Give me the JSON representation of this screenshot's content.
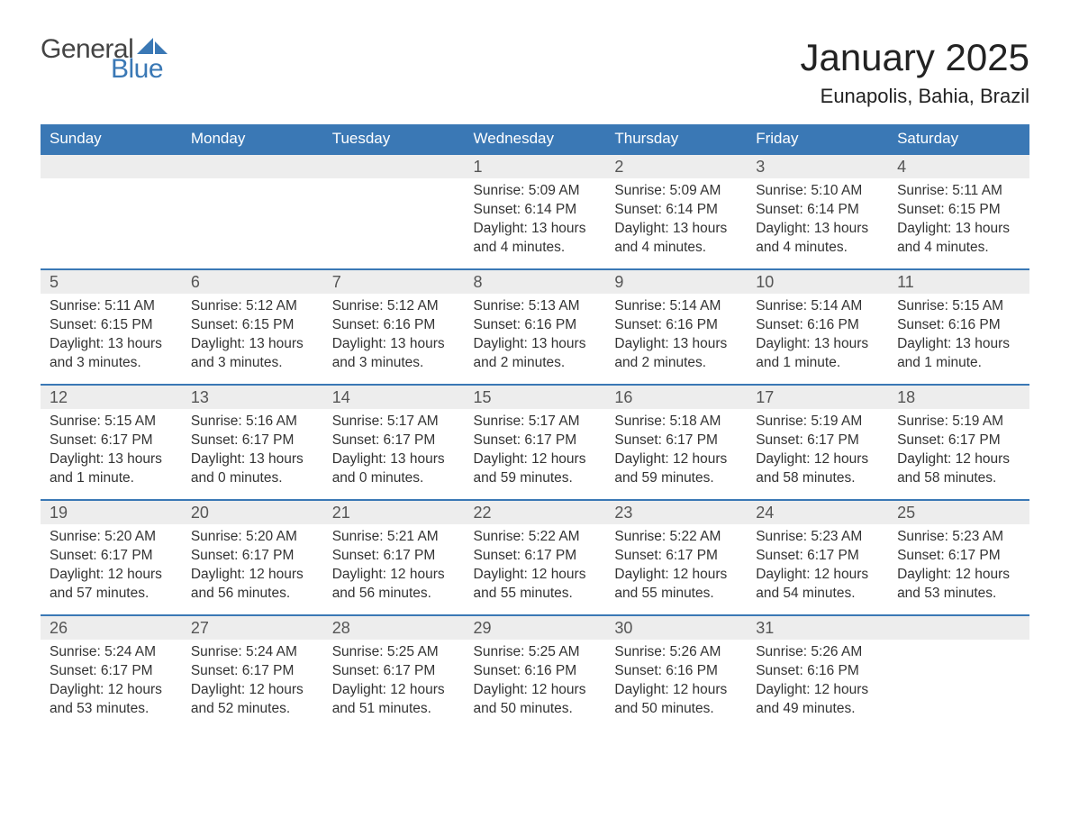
{
  "brand": {
    "line1": "General",
    "line2": "Blue",
    "flag_color": "#3a78b5"
  },
  "title": "January 2025",
  "location": "Eunapolis, Bahia, Brazil",
  "colors": {
    "header_bg": "#3a78b5",
    "header_text": "#ffffff",
    "daynum_bg": "#ededed",
    "daynum_border": "#3a78b5",
    "body_text": "#333333",
    "page_bg": "#ffffff"
  },
  "weekdays": [
    "Sunday",
    "Monday",
    "Tuesday",
    "Wednesday",
    "Thursday",
    "Friday",
    "Saturday"
  ],
  "labels": {
    "sunrise": "Sunrise: ",
    "sunset": "Sunset: ",
    "daylight": "Daylight: "
  },
  "weeks": [
    [
      null,
      null,
      null,
      {
        "n": "1",
        "sr": "5:09 AM",
        "ss": "6:14 PM",
        "dl": "13 hours and 4 minutes."
      },
      {
        "n": "2",
        "sr": "5:09 AM",
        "ss": "6:14 PM",
        "dl": "13 hours and 4 minutes."
      },
      {
        "n": "3",
        "sr": "5:10 AM",
        "ss": "6:14 PM",
        "dl": "13 hours and 4 minutes."
      },
      {
        "n": "4",
        "sr": "5:11 AM",
        "ss": "6:15 PM",
        "dl": "13 hours and 4 minutes."
      }
    ],
    [
      {
        "n": "5",
        "sr": "5:11 AM",
        "ss": "6:15 PM",
        "dl": "13 hours and 3 minutes."
      },
      {
        "n": "6",
        "sr": "5:12 AM",
        "ss": "6:15 PM",
        "dl": "13 hours and 3 minutes."
      },
      {
        "n": "7",
        "sr": "5:12 AM",
        "ss": "6:16 PM",
        "dl": "13 hours and 3 minutes."
      },
      {
        "n": "8",
        "sr": "5:13 AM",
        "ss": "6:16 PM",
        "dl": "13 hours and 2 minutes."
      },
      {
        "n": "9",
        "sr": "5:14 AM",
        "ss": "6:16 PM",
        "dl": "13 hours and 2 minutes."
      },
      {
        "n": "10",
        "sr": "5:14 AM",
        "ss": "6:16 PM",
        "dl": "13 hours and 1 minute."
      },
      {
        "n": "11",
        "sr": "5:15 AM",
        "ss": "6:16 PM",
        "dl": "13 hours and 1 minute."
      }
    ],
    [
      {
        "n": "12",
        "sr": "5:15 AM",
        "ss": "6:17 PM",
        "dl": "13 hours and 1 minute."
      },
      {
        "n": "13",
        "sr": "5:16 AM",
        "ss": "6:17 PM",
        "dl": "13 hours and 0 minutes."
      },
      {
        "n": "14",
        "sr": "5:17 AM",
        "ss": "6:17 PM",
        "dl": "13 hours and 0 minutes."
      },
      {
        "n": "15",
        "sr": "5:17 AM",
        "ss": "6:17 PM",
        "dl": "12 hours and 59 minutes."
      },
      {
        "n": "16",
        "sr": "5:18 AM",
        "ss": "6:17 PM",
        "dl": "12 hours and 59 minutes."
      },
      {
        "n": "17",
        "sr": "5:19 AM",
        "ss": "6:17 PM",
        "dl": "12 hours and 58 minutes."
      },
      {
        "n": "18",
        "sr": "5:19 AM",
        "ss": "6:17 PM",
        "dl": "12 hours and 58 minutes."
      }
    ],
    [
      {
        "n": "19",
        "sr": "5:20 AM",
        "ss": "6:17 PM",
        "dl": "12 hours and 57 minutes."
      },
      {
        "n": "20",
        "sr": "5:20 AM",
        "ss": "6:17 PM",
        "dl": "12 hours and 56 minutes."
      },
      {
        "n": "21",
        "sr": "5:21 AM",
        "ss": "6:17 PM",
        "dl": "12 hours and 56 minutes."
      },
      {
        "n": "22",
        "sr": "5:22 AM",
        "ss": "6:17 PM",
        "dl": "12 hours and 55 minutes."
      },
      {
        "n": "23",
        "sr": "5:22 AM",
        "ss": "6:17 PM",
        "dl": "12 hours and 55 minutes."
      },
      {
        "n": "24",
        "sr": "5:23 AM",
        "ss": "6:17 PM",
        "dl": "12 hours and 54 minutes."
      },
      {
        "n": "25",
        "sr": "5:23 AM",
        "ss": "6:17 PM",
        "dl": "12 hours and 53 minutes."
      }
    ],
    [
      {
        "n": "26",
        "sr": "5:24 AM",
        "ss": "6:17 PM",
        "dl": "12 hours and 53 minutes."
      },
      {
        "n": "27",
        "sr": "5:24 AM",
        "ss": "6:17 PM",
        "dl": "12 hours and 52 minutes."
      },
      {
        "n": "28",
        "sr": "5:25 AM",
        "ss": "6:17 PM",
        "dl": "12 hours and 51 minutes."
      },
      {
        "n": "29",
        "sr": "5:25 AM",
        "ss": "6:16 PM",
        "dl": "12 hours and 50 minutes."
      },
      {
        "n": "30",
        "sr": "5:26 AM",
        "ss": "6:16 PM",
        "dl": "12 hours and 50 minutes."
      },
      {
        "n": "31",
        "sr": "5:26 AM",
        "ss": "6:16 PM",
        "dl": "12 hours and 49 minutes."
      },
      null
    ]
  ]
}
